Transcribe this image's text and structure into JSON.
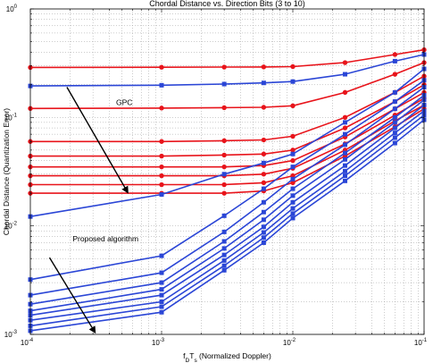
{
  "chart_data": {
    "type": "line",
    "title": "Chordal Distance vs. Direction Bits (3 to 10)",
    "xlabel": {
      "base": "f",
      "sub1": "D",
      "mid": "T",
      "sub2": "s",
      "rest": " (Normalized Doppler)"
    },
    "ylabel": "Chordal Distance (Quantization Error)",
    "xscale": "log",
    "yscale": "log",
    "xlim": [
      0.0001,
      0.1
    ],
    "ylim": [
      0.001,
      1
    ],
    "grid": true,
    "x_ticks": [
      {
        "base": "10",
        "exp": "-4"
      },
      {
        "base": "10",
        "exp": "-3"
      },
      {
        "base": "10",
        "exp": "-2"
      },
      {
        "base": "10",
        "exp": "-1"
      }
    ],
    "y_ticks": [
      {
        "base": "10",
        "exp": "-3"
      },
      {
        "base": "10",
        "exp": "-2"
      },
      {
        "base": "10",
        "exp": "-1"
      },
      {
        "base": "10",
        "exp": "0"
      }
    ],
    "x": [
      0.0001,
      0.001,
      0.003,
      0.006,
      0.01,
      0.025,
      0.06,
      0.1
    ],
    "red_color": "#e8141b",
    "blue_color": "#2b46d6",
    "red_marker": "circle",
    "blue_marker": "square",
    "series": [
      {
        "group": "GPC",
        "color": "red",
        "values": [
          0.289,
          0.29,
          0.291,
          0.292,
          0.294,
          0.32,
          0.38,
          0.42
        ]
      },
      {
        "group": "GPC",
        "color": "red",
        "values": [
          0.121,
          0.122,
          0.123,
          0.124,
          0.128,
          0.17,
          0.25,
          0.32
        ]
      },
      {
        "group": "GPC",
        "color": "red",
        "values": [
          0.06,
          0.06,
          0.061,
          0.062,
          0.067,
          0.1,
          0.17,
          0.24
        ]
      },
      {
        "group": "GPC",
        "color": "red",
        "values": [
          0.044,
          0.044,
          0.045,
          0.046,
          0.05,
          0.08,
          0.14,
          0.2
        ]
      },
      {
        "group": "GPC",
        "color": "red",
        "values": [
          0.035,
          0.035,
          0.035,
          0.036,
          0.04,
          0.066,
          0.12,
          0.17
        ]
      },
      {
        "group": "GPC",
        "color": "red",
        "values": [
          0.029,
          0.029,
          0.029,
          0.03,
          0.034,
          0.057,
          0.105,
          0.15
        ]
      },
      {
        "group": "GPC",
        "color": "red",
        "values": [
          0.024,
          0.024,
          0.024,
          0.025,
          0.029,
          0.05,
          0.093,
          0.13
        ]
      },
      {
        "group": "GPC",
        "color": "red",
        "values": [
          0.02,
          0.02,
          0.02,
          0.021,
          0.025,
          0.044,
          0.082,
          0.12
        ]
      },
      {
        "group": "Proposed algorithm",
        "color": "blue",
        "values": [
          0.195,
          0.198,
          0.203,
          0.208,
          0.214,
          0.25,
          0.33,
          0.38
        ]
      },
      {
        "group": "Proposed algorithm",
        "color": "blue",
        "values": [
          0.0122,
          0.0195,
          0.03,
          0.038,
          0.046,
          0.09,
          0.17,
          0.28
        ]
      },
      {
        "group": "Proposed algorithm",
        "color": "blue",
        "values": [
          0.0032,
          0.0053,
          0.0124,
          0.022,
          0.035,
          0.07,
          0.14,
          0.22
        ]
      },
      {
        "group": "Proposed algorithm",
        "color": "blue",
        "values": [
          0.0023,
          0.0037,
          0.0088,
          0.0165,
          0.027,
          0.056,
          0.12,
          0.19
        ]
      },
      {
        "group": "Proposed algorithm",
        "color": "blue",
        "values": [
          0.0019,
          0.003,
          0.0072,
          0.0134,
          0.022,
          0.047,
          0.1,
          0.16
        ]
      },
      {
        "group": "Proposed algorithm",
        "color": "blue",
        "values": [
          0.00165,
          0.0026,
          0.0062,
          0.0114,
          0.019,
          0.041,
          0.09,
          0.145
        ]
      },
      {
        "group": "Proposed algorithm",
        "color": "blue",
        "values": [
          0.0015,
          0.0023,
          0.0054,
          0.0098,
          0.0165,
          0.036,
          0.08,
          0.13
        ]
      },
      {
        "group": "Proposed algorithm",
        "color": "blue",
        "values": [
          0.00135,
          0.002,
          0.0048,
          0.0087,
          0.0145,
          0.032,
          0.072,
          0.115
        ]
      },
      {
        "group": "Proposed algorithm",
        "color": "blue",
        "values": [
          0.0012,
          0.0018,
          0.0043,
          0.0078,
          0.013,
          0.029,
          0.065,
          0.105
        ]
      },
      {
        "group": "Proposed algorithm",
        "color": "blue",
        "values": [
          0.00108,
          0.0016,
          0.0039,
          0.007,
          0.0118,
          0.026,
          0.058,
          0.095
        ]
      }
    ],
    "annotations": [
      {
        "label": "GPC",
        "text_at": [
          0.00045,
          0.13
        ],
        "arrow_from": [
          0.00019,
          0.19
        ],
        "arrow_to": [
          0.00055,
          0.0205
        ]
      },
      {
        "label": "Proposed algorithm",
        "text_at": [
          0.00021,
          0.0072
        ],
        "arrow_from": [
          0.00014,
          0.0051
        ],
        "arrow_to": [
          0.00031,
          0.00105
        ]
      }
    ]
  }
}
